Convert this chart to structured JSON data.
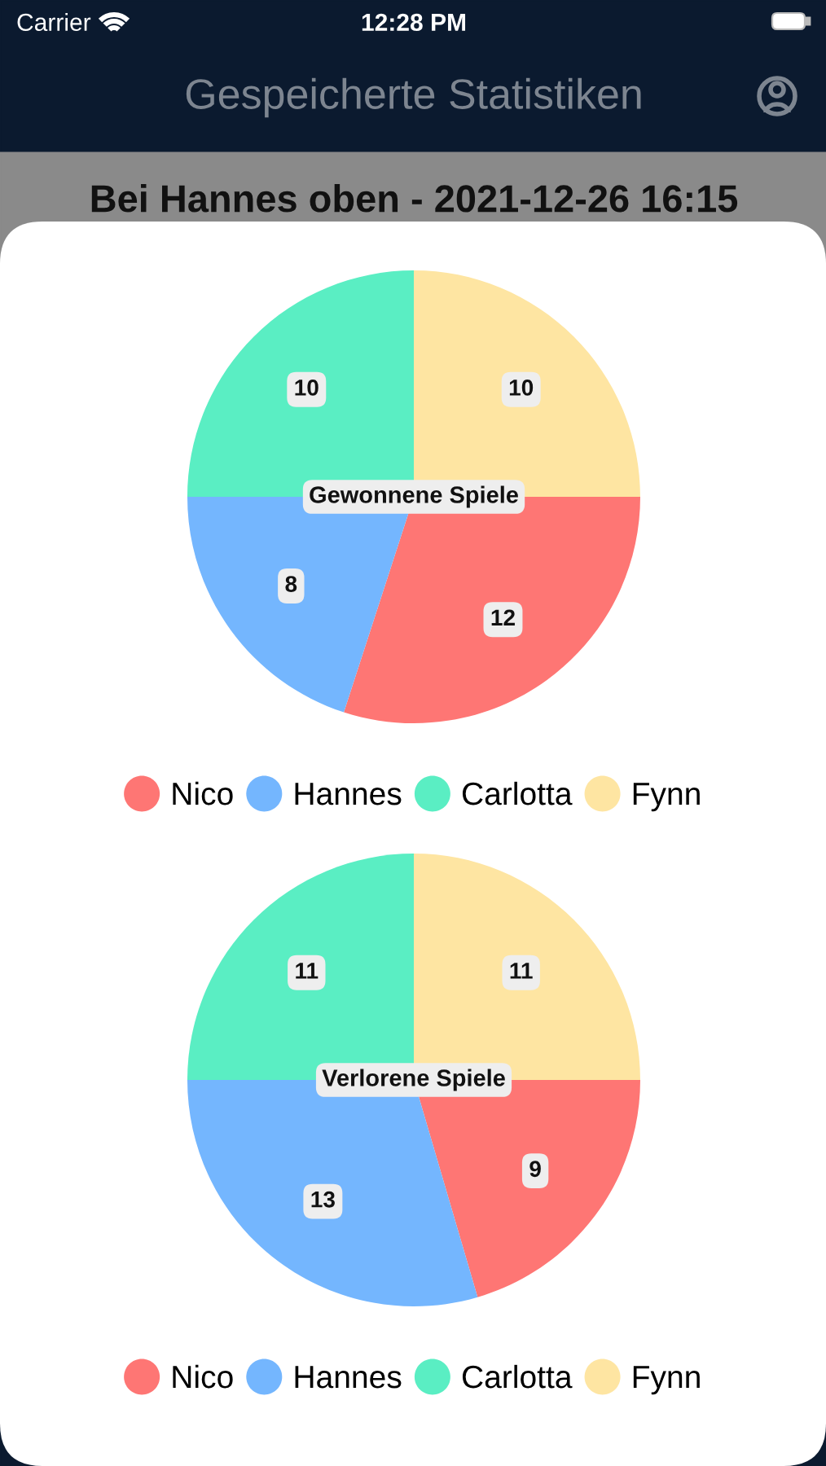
{
  "chart_data": [
    {
      "type": "pie",
      "title": "Gewonnene Spiele",
      "categories": [
        "Nico",
        "Hannes",
        "Carlotta",
        "Fynn"
      ],
      "values": [
        12,
        8,
        10,
        10
      ],
      "colors": [
        "#fe7674",
        "#74b6fe",
        "#5aeec3",
        "#fee5a2"
      ],
      "data_labels": true,
      "legend": "bottom",
      "annotations": [
        "Carrier",
        "12:28 PM",
        "Gespeicherte Statistiken",
        "Bei Hannes oben - 2021-12-26 16:15"
      ]
    },
    {
      "type": "pie",
      "title": "Verlorene Spiele",
      "categories": [
        "Nico",
        "Hannes",
        "Carlotta",
        "Fynn"
      ],
      "values": [
        9,
        13,
        11,
        11
      ],
      "colors": [
        "#fe7674",
        "#74b6fe",
        "#5aeec3",
        "#fee5a2"
      ],
      "data_labels": true,
      "legend": "bottom"
    }
  ]
}
